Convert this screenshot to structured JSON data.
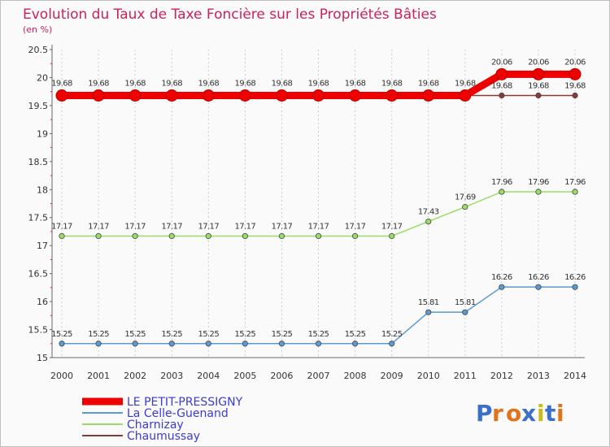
{
  "chart_data": {
    "type": "line",
    "title": "Evolution du Taux de Taxe Foncière sur les Propriétés Bâties",
    "ylabel": "(en %)",
    "xlabel": "",
    "x": [
      "2000",
      "2001",
      "2002",
      "2003",
      "2004",
      "2005",
      "2006",
      "2007",
      "2008",
      "2009",
      "2010",
      "2011",
      "2012",
      "2013",
      "2014"
    ],
    "ylim": [
      15,
      20.5
    ],
    "yticks": [
      "15",
      "15.5",
      "16",
      "16.5",
      "17",
      "17.5",
      "18",
      "18.5",
      "19",
      "19.5",
      "20",
      "20.5"
    ],
    "grid": "vertical",
    "legend_position": "bottom-left",
    "series": [
      {
        "name": "LE PETIT-PRESSIGNY",
        "color": "#ee0000",
        "values": [
          19.68,
          19.68,
          19.68,
          19.68,
          19.68,
          19.68,
          19.68,
          19.68,
          19.68,
          19.68,
          19.68,
          19.68,
          20.06,
          20.06,
          20.06
        ],
        "labels": [
          "19.68",
          "19.68",
          "19.68",
          "19.68",
          "19.68",
          "19.68",
          "19.68",
          "19.68",
          "19.68",
          "19.68",
          "19.68",
          "19.68",
          "20.06",
          "20.06",
          "20.06"
        ]
      },
      {
        "name": "La Celle-Guenand",
        "color": "#5b9bd5",
        "values": [
          15.25,
          15.25,
          15.25,
          15.25,
          15.25,
          15.25,
          15.25,
          15.25,
          15.25,
          15.25,
          15.81,
          15.81,
          16.26,
          16.26,
          16.26
        ],
        "labels": [
          "15.25",
          "15.25",
          "15.25",
          "15.25",
          "15.25",
          "15.25",
          "15.25",
          "15.25",
          "15.25",
          "15.25",
          "15.81",
          "15.81",
          "16.26",
          "16.26",
          "16.26"
        ]
      },
      {
        "name": "Charnizay",
        "color": "#99dd66",
        "values": [
          17.17,
          17.17,
          17.17,
          17.17,
          17.17,
          17.17,
          17.17,
          17.17,
          17.17,
          17.17,
          17.43,
          17.69,
          17.96,
          17.96,
          17.96
        ],
        "labels": [
          "17.17",
          "17.17",
          "17.17",
          "17.17",
          "17.17",
          "17.17",
          "17.17",
          "17.17",
          "17.17",
          "17.17",
          "17.43",
          "17.69",
          "17.96",
          "17.96",
          "17.96"
        ]
      },
      {
        "name": "Chaumussay",
        "color": "#8b3a3a",
        "values": [
          19.68,
          19.68,
          19.68,
          19.68,
          19.68,
          19.68,
          19.68,
          19.68,
          19.68,
          19.68,
          19.68,
          19.68,
          19.68,
          19.68,
          19.68
        ],
        "labels": [
          "",
          "",
          "",
          "",
          "",
          "",
          "",
          "",
          "",
          "",
          "",
          "",
          "19.68",
          "19.68",
          "19.68"
        ]
      }
    ]
  },
  "colors": {
    "title": "#cc2255",
    "legend_text": "#3a3ad6",
    "grid": "#cccccc",
    "axis": "#666666"
  },
  "logo": {
    "text": "Proxiti",
    "letter_colors": [
      "#3b6fc9",
      "#e0741c",
      "#e0741c",
      "#3b6fc9",
      "#c9bb1c",
      "#3b6fc9",
      "#e0741c"
    ]
  }
}
